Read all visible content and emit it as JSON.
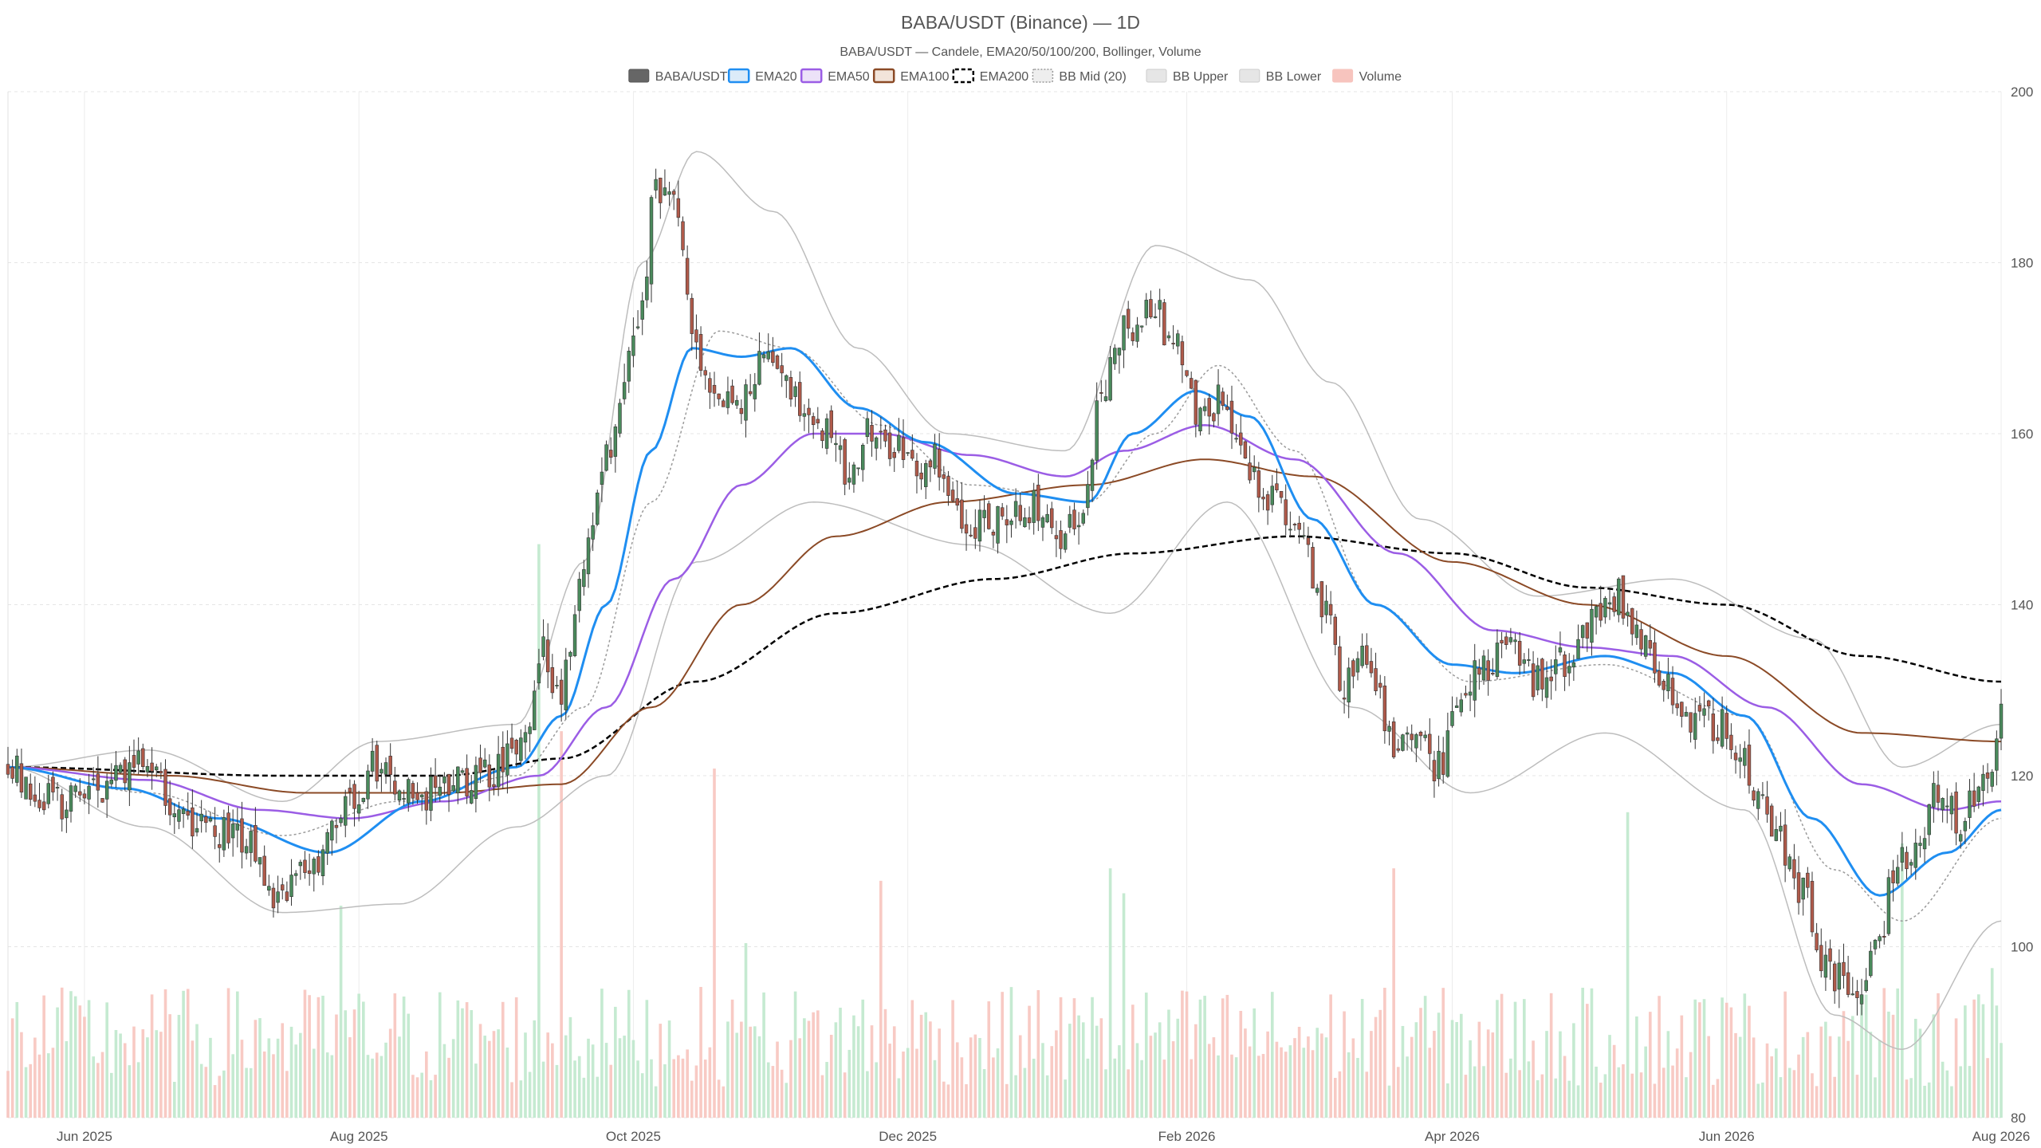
{
  "chart_data": {
    "type": "candlestick",
    "title": "BABA/USDT (Binance) — 1D",
    "subtitle": "BABA/USDT — Candele, EMA20/50/100/200, Bollinger, Volume",
    "legend": [
      {
        "label": "BABA/USDT",
        "color": "#666666",
        "style": "solid-fill"
      },
      {
        "label": "EMA20",
        "color": "#1f8ef1",
        "style": "line"
      },
      {
        "label": "EMA50",
        "color": "#9b5de5",
        "style": "line"
      },
      {
        "label": "EMA100",
        "color": "#8b4a26",
        "style": "line"
      },
      {
        "label": "EMA200",
        "color": "#000000",
        "style": "dashed"
      },
      {
        "label": "BB Mid (20)",
        "color": "#999999",
        "style": "dotted"
      },
      {
        "label": "BB Upper",
        "color": "#bbbbbb",
        "style": "band"
      },
      {
        "label": "BB Lower",
        "color": "#bbbbbb",
        "style": "band"
      },
      {
        "label": "Volume",
        "color": "#f4a6a0",
        "style": "bar"
      }
    ],
    "legend_position": "top-center",
    "x_axis": {
      "start": "2025-05-15",
      "end": "2026-08-01",
      "tick_labels": [
        "Jun 2025",
        "Aug 2025",
        "Oct 2025",
        "Dec 2025",
        "Feb 2026",
        "Apr 2026",
        "Jun 2026",
        "Aug 2026"
      ],
      "tick_dates": [
        "2025-06-01",
        "2025-08-01",
        "2025-10-01",
        "2025-12-01",
        "2026-02-01",
        "2026-04-01",
        "2026-06-01",
        "2026-08-01"
      ]
    },
    "y_axis": {
      "side": "right",
      "range": [
        80,
        200
      ],
      "ticks": [
        80,
        100,
        120,
        140,
        160,
        180,
        200
      ]
    },
    "grid": true,
    "colors": {
      "up": "#4a8a5c",
      "down": "#b05a4a",
      "volume_up": "#bfe8cc",
      "volume_down": "#f7c4be"
    },
    "close_path": [
      [
        "2025-05-15",
        121
      ],
      [
        "2025-05-25",
        117
      ],
      [
        "2025-06-05",
        119
      ],
      [
        "2025-06-15",
        121
      ],
      [
        "2025-06-25",
        114
      ],
      [
        "2025-07-05",
        113
      ],
      [
        "2025-07-15",
        106
      ],
      [
        "2025-07-22",
        110
      ],
      [
        "2025-07-28",
        116
      ],
      [
        "2025-08-05",
        121
      ],
      [
        "2025-08-15",
        118
      ],
      [
        "2025-08-25",
        119
      ],
      [
        "2025-09-01",
        121
      ],
      [
        "2025-09-07",
        124
      ],
      [
        "2025-09-10",
        135
      ],
      [
        "2025-09-15",
        130
      ],
      [
        "2025-09-20",
        145
      ],
      [
        "2025-09-25",
        158
      ],
      [
        "2025-09-29",
        166
      ],
      [
        "2025-10-03",
        176
      ],
      [
        "2025-10-06",
        189
      ],
      [
        "2025-10-10",
        187
      ],
      [
        "2025-10-14",
        172
      ],
      [
        "2025-10-19",
        165
      ],
      [
        "2025-10-24",
        162
      ],
      [
        "2025-10-30",
        170
      ],
      [
        "2025-11-04",
        166
      ],
      [
        "2025-11-08",
        163
      ],
      [
        "2025-11-12",
        160
      ],
      [
        "2025-11-18",
        156
      ],
      [
        "2025-11-23",
        161
      ],
      [
        "2025-11-28",
        158
      ],
      [
        "2025-12-03",
        155
      ],
      [
        "2025-12-08",
        157
      ],
      [
        "2025-12-13",
        150
      ],
      [
        "2025-12-18",
        150
      ],
      [
        "2025-12-24",
        150
      ],
      [
        "2025-12-30",
        152
      ],
      [
        "2026-01-05",
        148
      ],
      [
        "2026-01-10",
        152
      ],
      [
        "2026-01-13",
        165
      ],
      [
        "2026-01-18",
        172
      ],
      [
        "2026-01-24",
        175
      ],
      [
        "2026-01-30",
        170
      ],
      [
        "2026-02-04",
        161
      ],
      [
        "2026-02-09",
        164
      ],
      [
        "2026-02-14",
        156
      ],
      [
        "2026-02-20",
        152
      ],
      [
        "2026-02-26",
        149
      ],
      [
        "2026-03-03",
        140
      ],
      [
        "2026-03-08",
        131
      ],
      [
        "2026-03-13",
        135
      ],
      [
        "2026-03-19",
        123
      ],
      [
        "2026-03-24",
        125
      ],
      [
        "2026-03-29",
        121
      ],
      [
        "2026-04-03",
        128
      ],
      [
        "2026-04-08",
        133
      ],
      [
        "2026-04-14",
        136
      ],
      [
        "2026-04-20",
        131
      ],
      [
        "2026-04-26",
        133
      ],
      [
        "2026-05-02",
        138
      ],
      [
        "2026-05-08",
        141
      ],
      [
        "2026-05-12",
        136
      ],
      [
        "2026-05-18",
        131
      ],
      [
        "2026-05-24",
        127
      ],
      [
        "2026-05-30",
        126
      ],
      [
        "2026-06-04",
        123
      ],
      [
        "2026-06-09",
        117
      ],
      [
        "2026-06-13",
        112
      ],
      [
        "2026-06-18",
        106
      ],
      [
        "2026-06-24",
        97
      ],
      [
        "2026-06-29",
        95
      ],
      [
        "2026-07-04",
        99
      ],
      [
        "2026-07-09",
        110
      ],
      [
        "2026-07-14",
        113
      ],
      [
        "2026-07-18",
        119
      ],
      [
        "2026-07-22",
        115
      ],
      [
        "2026-07-26",
        117
      ],
      [
        "2026-07-30",
        122
      ],
      [
        "2026-08-01",
        127
      ]
    ],
    "ema20": [
      [
        "2025-05-15",
        121
      ],
      [
        "2025-06-10",
        118.5
      ],
      [
        "2025-07-01",
        115
      ],
      [
        "2025-07-25",
        111
      ],
      [
        "2025-08-15",
        117
      ],
      [
        "2025-09-05",
        121
      ],
      [
        "2025-09-15",
        127
      ],
      [
        "2025-09-25",
        140
      ],
      [
        "2025-10-05",
        158
      ],
      [
        "2025-10-14",
        170
      ],
      [
        "2025-10-25",
        169
      ],
      [
        "2025-11-05",
        170
      ],
      [
        "2025-11-20",
        163
      ],
      [
        "2025-12-05",
        159
      ],
      [
        "2025-12-25",
        153
      ],
      [
        "2026-01-10",
        152
      ],
      [
        "2026-01-20",
        160
      ],
      [
        "2026-02-03",
        165
      ],
      [
        "2026-02-15",
        162
      ],
      [
        "2026-03-01",
        150
      ],
      [
        "2026-03-15",
        140
      ],
      [
        "2026-04-01",
        133
      ],
      [
        "2026-04-15",
        132
      ],
      [
        "2026-05-05",
        134
      ],
      [
        "2026-05-20",
        132
      ],
      [
        "2026-06-05",
        127
      ],
      [
        "2026-06-20",
        115
      ],
      [
        "2026-07-05",
        106
      ],
      [
        "2026-07-20",
        111
      ],
      [
        "2026-08-01",
        116
      ]
    ],
    "ema50": [
      [
        "2025-05-15",
        121
      ],
      [
        "2025-06-15",
        119.5
      ],
      [
        "2025-07-10",
        116
      ],
      [
        "2025-07-30",
        115
      ],
      [
        "2025-08-20",
        117
      ],
      [
        "2025-09-10",
        120
      ],
      [
        "2025-09-25",
        128
      ],
      [
        "2025-10-10",
        143
      ],
      [
        "2025-10-25",
        154
      ],
      [
        "2025-11-10",
        160
      ],
      [
        "2025-11-25",
        160
      ],
      [
        "2025-12-15",
        157.5
      ],
      [
        "2026-01-05",
        155
      ],
      [
        "2026-01-18",
        158
      ],
      [
        "2026-02-05",
        161
      ],
      [
        "2026-02-25",
        157
      ],
      [
        "2026-03-20",
        146
      ],
      [
        "2026-04-10",
        137
      ],
      [
        "2026-05-01",
        135
      ],
      [
        "2026-05-20",
        134
      ],
      [
        "2026-06-10",
        128
      ],
      [
        "2026-07-01",
        119
      ],
      [
        "2026-07-20",
        116
      ],
      [
        "2026-08-01",
        117
      ]
    ],
    "ema100": [
      [
        "2025-05-15",
        121
      ],
      [
        "2025-06-20",
        120
      ],
      [
        "2025-07-20",
        118
      ],
      [
        "2025-08-20",
        118
      ],
      [
        "2025-09-15",
        119
      ],
      [
        "2025-10-05",
        128
      ],
      [
        "2025-10-25",
        140
      ],
      [
        "2025-11-15",
        148
      ],
      [
        "2025-12-10",
        152
      ],
      [
        "2026-01-10",
        154
      ],
      [
        "2026-02-05",
        157
      ],
      [
        "2026-03-01",
        155
      ],
      [
        "2026-04-01",
        145
      ],
      [
        "2026-05-01",
        140
      ],
      [
        "2026-06-01",
        134
      ],
      [
        "2026-07-01",
        125
      ],
      [
        "2026-08-01",
        124
      ]
    ],
    "ema200": [
      [
        "2025-05-15",
        121
      ],
      [
        "2025-07-15",
        120
      ],
      [
        "2025-08-20",
        120
      ],
      [
        "2025-09-15",
        122
      ],
      [
        "2025-10-15",
        131
      ],
      [
        "2025-11-15",
        139
      ],
      [
        "2025-12-20",
        143
      ],
      [
        "2026-01-20",
        146
      ],
      [
        "2026-02-25",
        148
      ],
      [
        "2026-04-01",
        146
      ],
      [
        "2026-05-01",
        142
      ],
      [
        "2026-06-01",
        140
      ],
      [
        "2026-07-01",
        134
      ],
      [
        "2026-08-01",
        131
      ]
    ],
    "bb_mid": [
      [
        "2025-05-15",
        121
      ],
      [
        "2025-06-15",
        118
      ],
      [
        "2025-07-15",
        113
      ],
      [
        "2025-08-10",
        117
      ],
      [
        "2025-09-05",
        120
      ],
      [
        "2025-09-20",
        128
      ],
      [
        "2025-10-05",
        152
      ],
      [
        "2025-10-20",
        172
      ],
      [
        "2025-11-05",
        170
      ],
      [
        "2025-11-25",
        161
      ],
      [
        "2025-12-15",
        154
      ],
      [
        "2026-01-10",
        152
      ],
      [
        "2026-01-25",
        160
      ],
      [
        "2026-02-08",
        168
      ],
      [
        "2026-02-25",
        158
      ],
      [
        "2026-03-15",
        140
      ],
      [
        "2026-04-05",
        131
      ],
      [
        "2026-05-05",
        133
      ],
      [
        "2026-06-05",
        127
      ],
      [
        "2026-06-25",
        109
      ],
      [
        "2026-07-10",
        103
      ],
      [
        "2026-08-01",
        115
      ]
    ],
    "bb_upper": [
      [
        "2025-05-15",
        121
      ],
      [
        "2025-06-15",
        123
      ],
      [
        "2025-07-15",
        117
      ],
      [
        "2025-08-05",
        124
      ],
      [
        "2025-09-05",
        126
      ],
      [
        "2025-09-20",
        145
      ],
      [
        "2025-10-03",
        180
      ],
      [
        "2025-10-15",
        193
      ],
      [
        "2025-11-01",
        186
      ],
      [
        "2025-11-20",
        170
      ],
      [
        "2025-12-10",
        160
      ],
      [
        "2026-01-05",
        158
      ],
      [
        "2026-01-25",
        182
      ],
      [
        "2026-02-15",
        178
      ],
      [
        "2026-03-05",
        166
      ],
      [
        "2026-03-25",
        150
      ],
      [
        "2026-04-20",
        141
      ],
      [
        "2026-05-20",
        143
      ],
      [
        "2026-06-20",
        136
      ],
      [
        "2026-07-10",
        121
      ],
      [
        "2026-08-01",
        126
      ]
    ],
    "bb_lower": [
      [
        "2025-05-15",
        121
      ],
      [
        "2025-06-15",
        114
      ],
      [
        "2025-07-15",
        104
      ],
      [
        "2025-08-10",
        105
      ],
      [
        "2025-09-05",
        114
      ],
      [
        "2025-09-25",
        120
      ],
      [
        "2025-10-15",
        145
      ],
      [
        "2025-11-10",
        152
      ],
      [
        "2025-12-15",
        147
      ],
      [
        "2026-01-15",
        139
      ],
      [
        "2026-02-10",
        152
      ],
      [
        "2026-03-10",
        128
      ],
      [
        "2026-04-05",
        118
      ],
      [
        "2026-05-05",
        125
      ],
      [
        "2026-06-05",
        116
      ],
      [
        "2026-06-25",
        92
      ],
      [
        "2026-07-10",
        88
      ],
      [
        "2026-08-01",
        103
      ]
    ],
    "volume_spikes": [
      [
        "2025-07-28",
        0.34
      ],
      [
        "2025-09-10",
        0.92
      ],
      [
        "2025-09-15",
        0.62
      ],
      [
        "2025-10-19",
        0.56
      ],
      [
        "2025-10-26",
        0.28
      ],
      [
        "2025-11-25",
        0.38
      ],
      [
        "2026-01-15",
        0.4
      ],
      [
        "2026-01-18",
        0.36
      ],
      [
        "2026-03-19",
        0.4
      ],
      [
        "2026-05-10",
        0.49
      ],
      [
        "2026-07-10",
        0.44
      ],
      [
        "2026-07-30",
        0.24
      ]
    ]
  }
}
